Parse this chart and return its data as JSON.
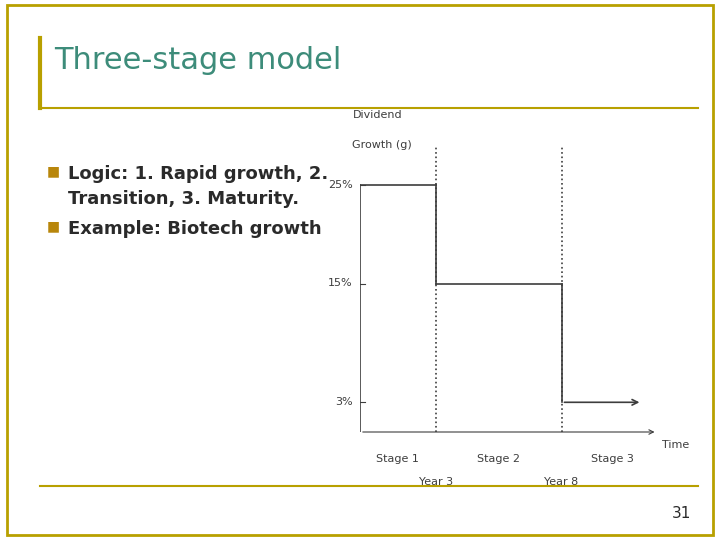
{
  "title": "Three-stage model",
  "bullet1_line1": "Logic: 1. Rapid growth, 2.",
  "bullet1_line2": "Transition, 3. Maturity.",
  "bullet2": "Example: Biotech growth",
  "ylabel_line1": "Dividend",
  "ylabel_line2": "Growth (g)",
  "xlabel_arrow": "Time",
  "ytick_labels": [
    "25%",
    "15%",
    "3%"
  ],
  "ytick_values": [
    25,
    15,
    3
  ],
  "stage_labels": [
    "Stage 1",
    "Stage 2",
    "Stage 3"
  ],
  "year_labels": [
    "Year 3",
    "Year 8"
  ],
  "year3_x": 3,
  "year8_x": 8,
  "stage1_g": 25,
  "stage2_g": 15,
  "stage3_g": 3,
  "xlim": [
    0,
    12
  ],
  "ylim": [
    0,
    30
  ],
  "background_color": "#ffffff",
  "line_color": "#3d3d3d",
  "title_color": "#3d8c7a",
  "bullet_color": "#b8860b",
  "text_color": "#2a2a2a",
  "border_color": "#b8a000",
  "page_number": "31",
  "bullet_fontsize": 13,
  "title_fontsize": 22,
  "chart_label_fontsize": 8
}
